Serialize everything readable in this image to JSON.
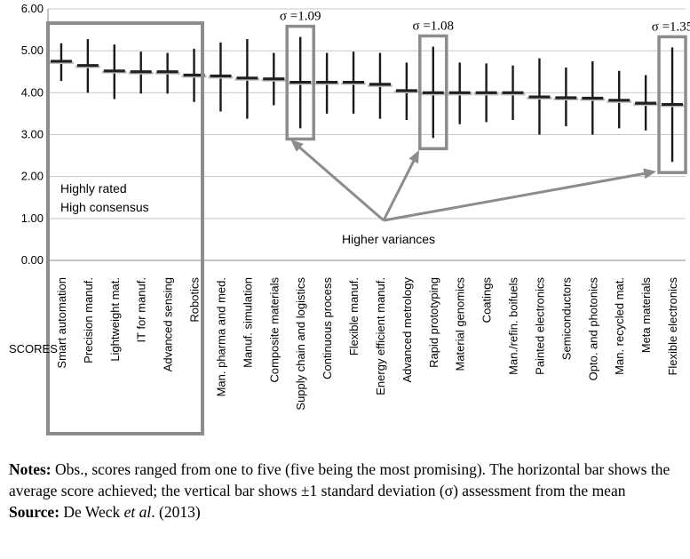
{
  "chart_data": {
    "type": "error-bar",
    "ylabel": "SCORES",
    "ylim": [
      0,
      6
    ],
    "yticks": [
      "0.00",
      "1.00",
      "2.00",
      "3.00",
      "4.00",
      "5.00",
      "6.00"
    ],
    "grid": true,
    "categories": [
      "Smart automation",
      "Precision manuf.",
      "Lightweight mat.",
      "IT for manuf.",
      "Advanced sensing",
      "Robotics",
      "Man. pharma and med.",
      "Manuf. simulation",
      "Composite materials",
      "Supply chain and logistics",
      "Continuous process",
      "Flexible manuf.",
      "Energy efficient manuf.",
      "Advanced metrology",
      "Rapid prototyping",
      "Material genomics",
      "Coatings",
      "Man./refin. boifuels",
      "Painted electronics",
      "Semiconductors",
      "Opto. and photonics",
      "Man. recycled mat.",
      "Meta materials",
      "Flexible electronics"
    ],
    "mean": [
      4.75,
      4.65,
      4.52,
      4.5,
      4.5,
      4.42,
      4.4,
      4.35,
      4.33,
      4.25,
      4.25,
      4.25,
      4.2,
      4.05,
      4.0,
      4.0,
      4.0,
      4.0,
      3.9,
      3.88,
      3.87,
      3.82,
      3.75,
      3.72
    ],
    "upper": [
      5.18,
      5.28,
      5.15,
      4.98,
      4.95,
      5.05,
      5.2,
      5.28,
      4.95,
      5.33,
      4.95,
      4.98,
      4.95,
      4.72,
      5.1,
      4.72,
      4.7,
      4.65,
      4.82,
      4.6,
      4.75,
      4.52,
      4.42,
      5.08
    ],
    "lower": [
      4.28,
      4.0,
      3.85,
      3.98,
      3.98,
      3.78,
      3.55,
      3.38,
      3.7,
      3.15,
      3.5,
      3.5,
      3.38,
      3.35,
      2.92,
      3.25,
      3.3,
      3.35,
      3.0,
      3.2,
      3.0,
      3.15,
      3.1,
      2.35
    ],
    "annotations": {
      "group_label_line1": "Highly rated",
      "group_label_line2": "High consensus",
      "variance_label": "Higher variances",
      "highlights": [
        {
          "category": "Supply chain and logistics",
          "sigma_label": "σ =1.09"
        },
        {
          "category": "Rapid prototyping",
          "sigma_label": "σ =1.08"
        },
        {
          "category": "Flexible electronics",
          "sigma_label": "σ =1.35"
        }
      ]
    }
  },
  "notes": {
    "notes_label": "Notes:",
    "notes_text": " Obs., scores ranged from one to five (five being the most promising). The horizontal bar shows the average score achieved; the vertical bar shows ±1 standard deviation (σ) assessment from the mean",
    "source_label": "Source:",
    "source_author": " De Weck ",
    "source_etal": "et al",
    "source_year": ". (2013)"
  }
}
